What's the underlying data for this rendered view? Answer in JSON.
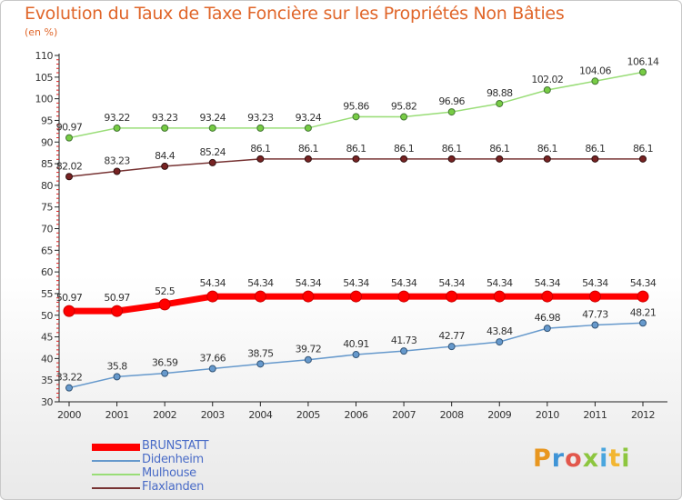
{
  "header": {
    "title": "Evolution du Taux de Taxe Foncière sur les Propriétés Non Bâties",
    "unit": "(en %)"
  },
  "chart_data": {
    "type": "line",
    "title": "Evolution du Taux de Taxe Foncière sur les Propriétés Non Bâties",
    "ylabel": "(en %)",
    "xlabel": "",
    "ylim": [
      30,
      110
    ],
    "yticks": [
      "30",
      "35",
      "40",
      "45",
      "50",
      "55",
      "60",
      "65",
      "70",
      "75",
      "80",
      "85",
      "90",
      "95",
      "100",
      "105",
      "110"
    ],
    "grid": false,
    "legend_position": "bottom-left",
    "categories": [
      "2000",
      "2001",
      "2002",
      "2003",
      "2004",
      "2005",
      "2006",
      "2007",
      "2008",
      "2009",
      "2010",
      "2011",
      "2012"
    ],
    "series": [
      {
        "name": "BRUNSTATT",
        "color": "#ff0000",
        "values": [
          50.97,
          50.97,
          52.5,
          54.34,
          54.34,
          54.34,
          54.34,
          54.34,
          54.34,
          54.34,
          54.34,
          54.34,
          54.34
        ],
        "labels": [
          "50.97",
          "50.97",
          "52.5",
          "54.34",
          "54.34",
          "54.34",
          "54.34",
          "54.34",
          "54.34",
          "54.34",
          "54.34",
          "54.34",
          "54.34"
        ]
      },
      {
        "name": "Didenheim",
        "color": "#6699cc",
        "values": [
          33.22,
          35.8,
          36.59,
          37.66,
          38.75,
          39.72,
          40.91,
          41.73,
          42.77,
          43.84,
          46.98,
          47.73,
          48.21
        ],
        "labels": [
          "33.22",
          "35.8",
          "36.59",
          "37.66",
          "38.75",
          "39.72",
          "40.91",
          "41.73",
          "42.77",
          "43.84",
          "46.98",
          "47.73",
          "48.21"
        ]
      },
      {
        "name": "Mulhouse",
        "color": "#99dd77",
        "values": [
          90.97,
          93.22,
          93.23,
          93.24,
          93.23,
          93.24,
          95.86,
          95.82,
          96.96,
          98.88,
          102.02,
          104.06,
          106.14
        ],
        "labels": [
          "90.97",
          "93.22",
          "93.23",
          "93.24",
          "93.23",
          "93.24",
          "95.86",
          "95.82",
          "96.96",
          "98.88",
          "102.02",
          "104.06",
          "106.14"
        ]
      },
      {
        "name": "Flaxlanden",
        "color": "#773333",
        "values": [
          82.02,
          83.23,
          84.4,
          85.24,
          86.1,
          86.1,
          86.1,
          86.1,
          86.1,
          86.1,
          86.1,
          86.1,
          86.1
        ],
        "labels": [
          "82.02",
          "83.23",
          "84.4",
          "85.24",
          "86.1",
          "86.1",
          "86.1",
          "86.1",
          "86.1",
          "86.1",
          "86.1",
          "86.1",
          "86.1"
        ]
      }
    ]
  },
  "logo": {
    "letters": [
      "P",
      "r",
      "o",
      "x",
      "i",
      "t",
      "i"
    ],
    "colors": [
      "#e8961f",
      "#3f94d6",
      "#e2574c",
      "#8dc63f",
      "#4aa6de",
      "#f2b632",
      "#8dc63f"
    ]
  }
}
